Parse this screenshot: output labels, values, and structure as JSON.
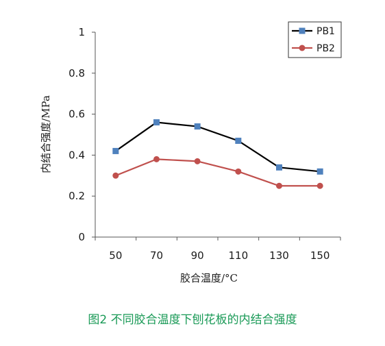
{
  "caption": "图2 不同胶合温度下刨花板的内结合强度",
  "colors": {
    "caption": "#1a9a57",
    "axis": "#555555"
  },
  "chart_data": {
    "type": "line",
    "categories": [
      "50",
      "70",
      "90",
      "110",
      "130",
      "150"
    ],
    "xlabel": "胶合温度/°C",
    "ylabel": "内结合强度/MPa",
    "ylim": [
      0,
      1
    ],
    "yticks": [
      "0",
      "0.2",
      "0.4",
      "0.6",
      "0.8",
      "1"
    ],
    "legend_position": "top-right",
    "grid": false,
    "series": [
      {
        "name": "PB1",
        "values": [
          0.42,
          0.56,
          0.54,
          0.47,
          0.34,
          0.32
        ],
        "color": "#4f81bd",
        "line_color": "#000000",
        "marker": "square"
      },
      {
        "name": "PB2",
        "values": [
          0.3,
          0.38,
          0.37,
          0.32,
          0.25,
          0.25
        ],
        "color": "#c0504d",
        "line_color": "#c0504d",
        "marker": "circle"
      }
    ]
  }
}
